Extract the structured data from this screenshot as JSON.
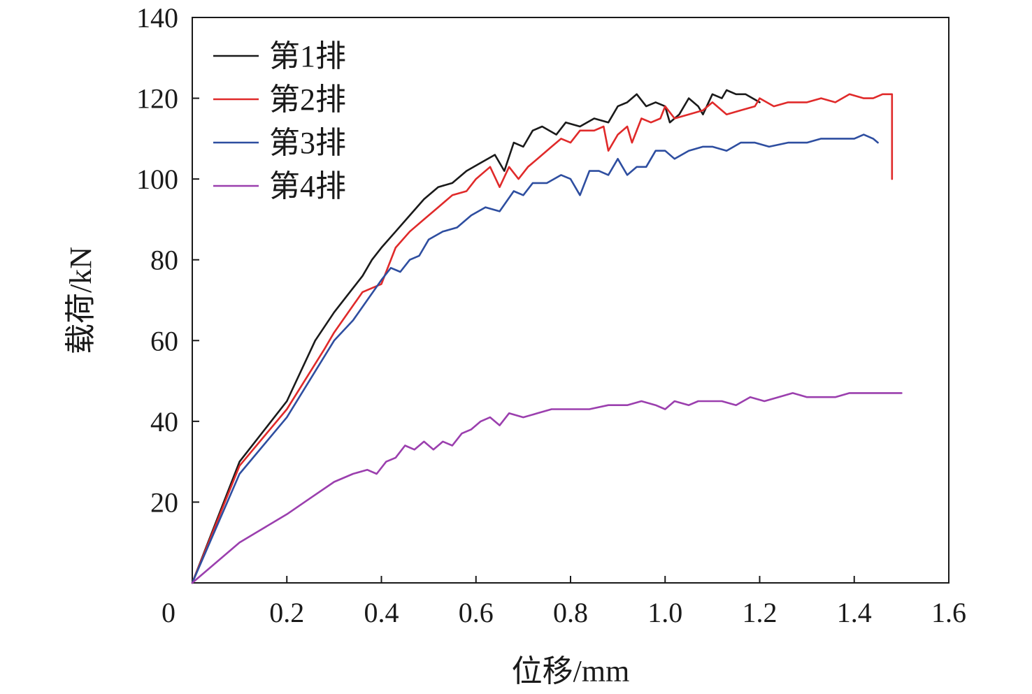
{
  "chart_data": {
    "type": "line",
    "xlabel": "位移/mm",
    "ylabel": "载荷/kN",
    "xlim": [
      0,
      1.6
    ],
    "ylim": [
      0,
      140
    ],
    "x_ticks": [
      0,
      0.2,
      0.4,
      0.6,
      0.8,
      1.0,
      1.2,
      1.4,
      1.6
    ],
    "x_tick_labels": [
      "0",
      "0.2",
      "0.4",
      "0.6",
      "0.8",
      "1.0",
      "1.2",
      "1.4",
      "1.6"
    ],
    "y_ticks": [
      20,
      40,
      60,
      80,
      100,
      120,
      140
    ],
    "y_tick_labels": [
      "20",
      "40",
      "60",
      "80",
      "100",
      "120",
      "140"
    ],
    "legend_position": "top-left",
    "grid": false,
    "series": [
      {
        "name": "第1排",
        "color": "#1a1a1a",
        "points": [
          [
            0,
            0
          ],
          [
            0.1,
            30
          ],
          [
            0.2,
            45
          ],
          [
            0.26,
            60
          ],
          [
            0.3,
            67
          ],
          [
            0.34,
            73
          ],
          [
            0.36,
            76
          ],
          [
            0.38,
            80
          ],
          [
            0.4,
            83
          ],
          [
            0.43,
            87
          ],
          [
            0.46,
            91
          ],
          [
            0.49,
            95
          ],
          [
            0.52,
            98
          ],
          [
            0.55,
            99
          ],
          [
            0.58,
            102
          ],
          [
            0.61,
            104
          ],
          [
            0.64,
            106
          ],
          [
            0.66,
            102
          ],
          [
            0.68,
            109
          ],
          [
            0.7,
            108
          ],
          [
            0.72,
            112
          ],
          [
            0.74,
            113
          ],
          [
            0.77,
            111
          ],
          [
            0.79,
            114
          ],
          [
            0.82,
            113
          ],
          [
            0.85,
            115
          ],
          [
            0.88,
            114
          ],
          [
            0.9,
            118
          ],
          [
            0.92,
            119
          ],
          [
            0.94,
            121
          ],
          [
            0.96,
            118
          ],
          [
            0.98,
            119
          ],
          [
            1.0,
            118
          ],
          [
            1.01,
            114
          ],
          [
            1.03,
            116
          ],
          [
            1.05,
            120
          ],
          [
            1.07,
            118
          ],
          [
            1.08,
            116
          ],
          [
            1.1,
            121
          ],
          [
            1.12,
            120
          ],
          [
            1.13,
            122
          ],
          [
            1.15,
            121
          ],
          [
            1.17,
            121
          ],
          [
            1.2,
            119
          ]
        ]
      },
      {
        "name": "第2排",
        "color": "#e02a2a",
        "points": [
          [
            0,
            0
          ],
          [
            0.1,
            29
          ],
          [
            0.2,
            43
          ],
          [
            0.28,
            58
          ],
          [
            0.3,
            62
          ],
          [
            0.33,
            67
          ],
          [
            0.36,
            72
          ],
          [
            0.38,
            73
          ],
          [
            0.4,
            74
          ],
          [
            0.43,
            83
          ],
          [
            0.46,
            87
          ],
          [
            0.49,
            90
          ],
          [
            0.52,
            93
          ],
          [
            0.55,
            96
          ],
          [
            0.58,
            97
          ],
          [
            0.6,
            100
          ],
          [
            0.63,
            103
          ],
          [
            0.65,
            98
          ],
          [
            0.67,
            103
          ],
          [
            0.69,
            100
          ],
          [
            0.71,
            103
          ],
          [
            0.73,
            105
          ],
          [
            0.76,
            108
          ],
          [
            0.78,
            110
          ],
          [
            0.8,
            109
          ],
          [
            0.82,
            112
          ],
          [
            0.85,
            112
          ],
          [
            0.87,
            113
          ],
          [
            0.88,
            107
          ],
          [
            0.9,
            111
          ],
          [
            0.92,
            113
          ],
          [
            0.93,
            109
          ],
          [
            0.95,
            115
          ],
          [
            0.97,
            114
          ],
          [
            0.99,
            115
          ],
          [
            1.0,
            118
          ],
          [
            1.02,
            115
          ],
          [
            1.05,
            116
          ],
          [
            1.08,
            117
          ],
          [
            1.1,
            119
          ],
          [
            1.13,
            116
          ],
          [
            1.16,
            117
          ],
          [
            1.19,
            118
          ],
          [
            1.2,
            120
          ],
          [
            1.23,
            118
          ],
          [
            1.26,
            119
          ],
          [
            1.3,
            119
          ],
          [
            1.33,
            120
          ],
          [
            1.36,
            119
          ],
          [
            1.39,
            121
          ],
          [
            1.42,
            120
          ],
          [
            1.44,
            120
          ],
          [
            1.46,
            121
          ],
          [
            1.47,
            121
          ],
          [
            1.48,
            121
          ],
          [
            1.48,
            100
          ]
        ]
      },
      {
        "name": "第3排",
        "color": "#2e4ea0",
        "points": [
          [
            0,
            0
          ],
          [
            0.1,
            27
          ],
          [
            0.2,
            41
          ],
          [
            0.3,
            60
          ],
          [
            0.34,
            65
          ],
          [
            0.37,
            70
          ],
          [
            0.4,
            75
          ],
          [
            0.42,
            78
          ],
          [
            0.44,
            77
          ],
          [
            0.46,
            80
          ],
          [
            0.48,
            81
          ],
          [
            0.5,
            85
          ],
          [
            0.53,
            87
          ],
          [
            0.56,
            88
          ],
          [
            0.59,
            91
          ],
          [
            0.62,
            93
          ],
          [
            0.65,
            92
          ],
          [
            0.68,
            97
          ],
          [
            0.7,
            96
          ],
          [
            0.72,
            99
          ],
          [
            0.75,
            99
          ],
          [
            0.78,
            101
          ],
          [
            0.8,
            100
          ],
          [
            0.82,
            96
          ],
          [
            0.84,
            102
          ],
          [
            0.86,
            102
          ],
          [
            0.88,
            101
          ],
          [
            0.9,
            105
          ],
          [
            0.92,
            101
          ],
          [
            0.94,
            103
          ],
          [
            0.96,
            103
          ],
          [
            0.98,
            107
          ],
          [
            1.0,
            107
          ],
          [
            1.02,
            105
          ],
          [
            1.05,
            107
          ],
          [
            1.08,
            108
          ],
          [
            1.1,
            108
          ],
          [
            1.13,
            107
          ],
          [
            1.16,
            109
          ],
          [
            1.19,
            109
          ],
          [
            1.22,
            108
          ],
          [
            1.26,
            109
          ],
          [
            1.3,
            109
          ],
          [
            1.33,
            110
          ],
          [
            1.36,
            110
          ],
          [
            1.4,
            110
          ],
          [
            1.42,
            111
          ],
          [
            1.44,
            110
          ],
          [
            1.45,
            109
          ]
        ]
      },
      {
        "name": "第4排",
        "color": "#9b3fae",
        "points": [
          [
            0,
            0
          ],
          [
            0.1,
            10
          ],
          [
            0.2,
            17
          ],
          [
            0.25,
            21
          ],
          [
            0.3,
            25
          ],
          [
            0.34,
            27
          ],
          [
            0.37,
            28
          ],
          [
            0.39,
            27
          ],
          [
            0.41,
            30
          ],
          [
            0.43,
            31
          ],
          [
            0.45,
            34
          ],
          [
            0.47,
            33
          ],
          [
            0.49,
            35
          ],
          [
            0.51,
            33
          ],
          [
            0.53,
            35
          ],
          [
            0.55,
            34
          ],
          [
            0.57,
            37
          ],
          [
            0.59,
            38
          ],
          [
            0.61,
            40
          ],
          [
            0.63,
            41
          ],
          [
            0.65,
            39
          ],
          [
            0.67,
            42
          ],
          [
            0.7,
            41
          ],
          [
            0.73,
            42
          ],
          [
            0.76,
            43
          ],
          [
            0.8,
            43
          ],
          [
            0.84,
            43
          ],
          [
            0.88,
            44
          ],
          [
            0.92,
            44
          ],
          [
            0.95,
            45
          ],
          [
            0.98,
            44
          ],
          [
            1.0,
            43
          ],
          [
            1.02,
            45
          ],
          [
            1.05,
            44
          ],
          [
            1.07,
            45
          ],
          [
            1.09,
            45
          ],
          [
            1.12,
            45
          ],
          [
            1.15,
            44
          ],
          [
            1.18,
            46
          ],
          [
            1.21,
            45
          ],
          [
            1.24,
            46
          ],
          [
            1.27,
            47
          ],
          [
            1.3,
            46
          ],
          [
            1.33,
            46
          ],
          [
            1.36,
            46
          ],
          [
            1.39,
            47
          ],
          [
            1.42,
            47
          ],
          [
            1.45,
            47
          ],
          [
            1.48,
            47
          ],
          [
            1.5,
            47
          ]
        ]
      }
    ]
  }
}
